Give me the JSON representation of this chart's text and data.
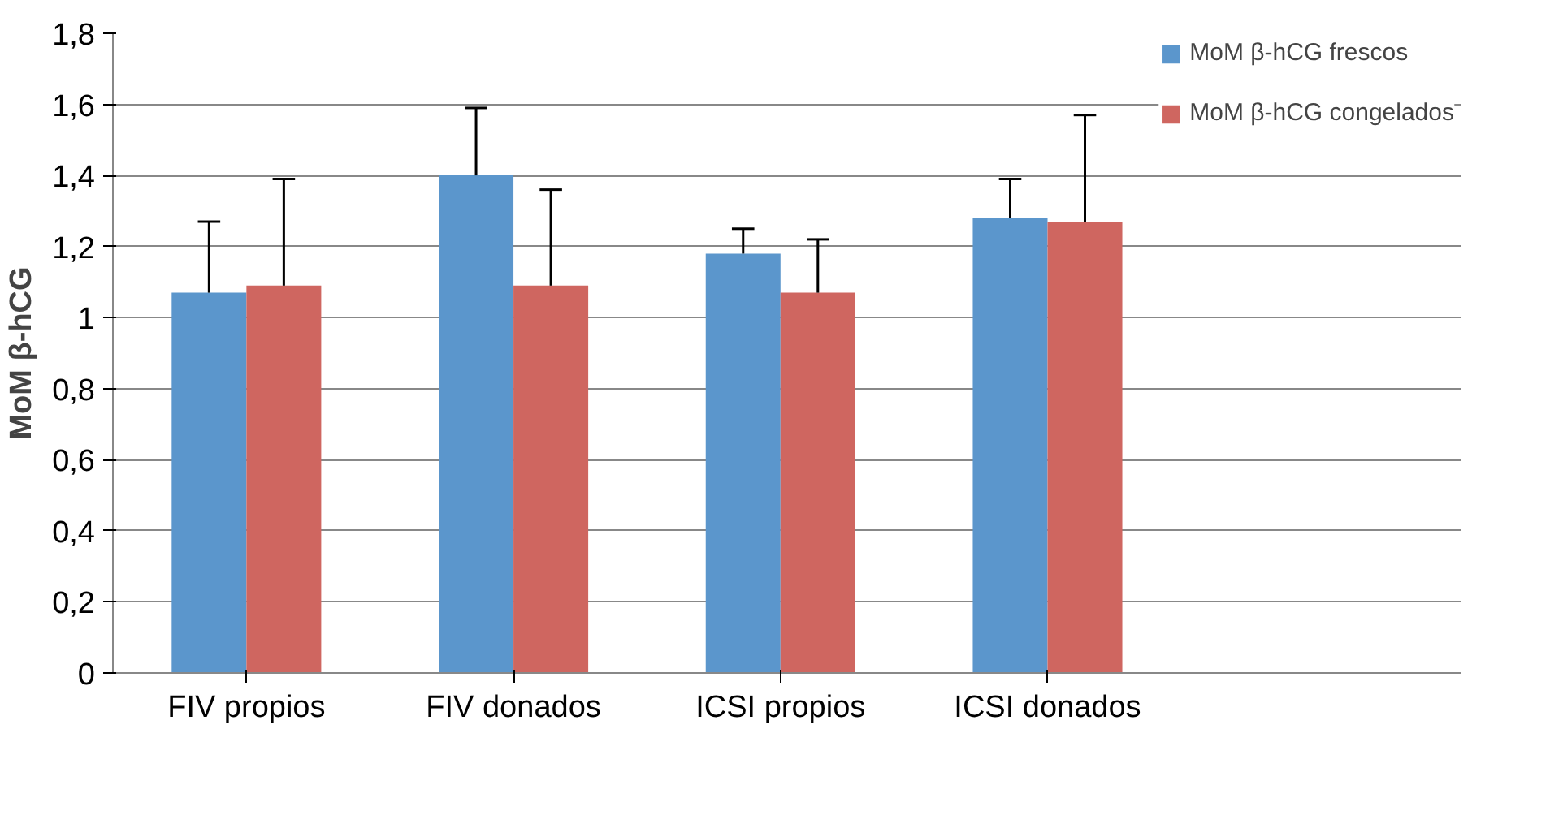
{
  "chart_data": {
    "type": "bar",
    "ylabel": "MoM β-hCG",
    "categories": [
      "FIV propios",
      "FIV donados",
      "ICSI propios",
      "ICSI donados"
    ],
    "series": [
      {
        "name": "MoM β-hCG frescos",
        "color": "#5b96cc",
        "values": [
          1.07,
          1.4,
          1.18,
          1.28
        ],
        "errors": [
          [
            1.07,
            1.27
          ],
          [
            1.4,
            1.59
          ],
          [
            1.18,
            1.25
          ],
          [
            1.28,
            1.39
          ]
        ]
      },
      {
        "name": "MoM β-hCG congelados",
        "color": "#cf6660",
        "values": [
          1.09,
          1.09,
          1.07,
          1.27
        ],
        "errors": [
          [
            1.09,
            1.39
          ],
          [
            1.09,
            1.36
          ],
          [
            1.07,
            1.22
          ],
          [
            1.27,
            1.57
          ]
        ]
      }
    ],
    "ylim": [
      0,
      1.8
    ],
    "yticks": [
      {
        "value": 0,
        "label": "0"
      },
      {
        "value": 0.2,
        "label": "0,2"
      },
      {
        "value": 0.4,
        "label": "0,4"
      },
      {
        "value": 0.6,
        "label": "0,6"
      },
      {
        "value": 0.8,
        "label": "0,8"
      },
      {
        "value": 1,
        "label": "1"
      },
      {
        "value": 1.2,
        "label": "1,2"
      },
      {
        "value": 1.4,
        "label": "1,4"
      },
      {
        "value": 1.6,
        "label": "1,6"
      },
      {
        "value": 1.8,
        "label": "1,8"
      }
    ],
    "grid": "y",
    "legend": "right"
  }
}
